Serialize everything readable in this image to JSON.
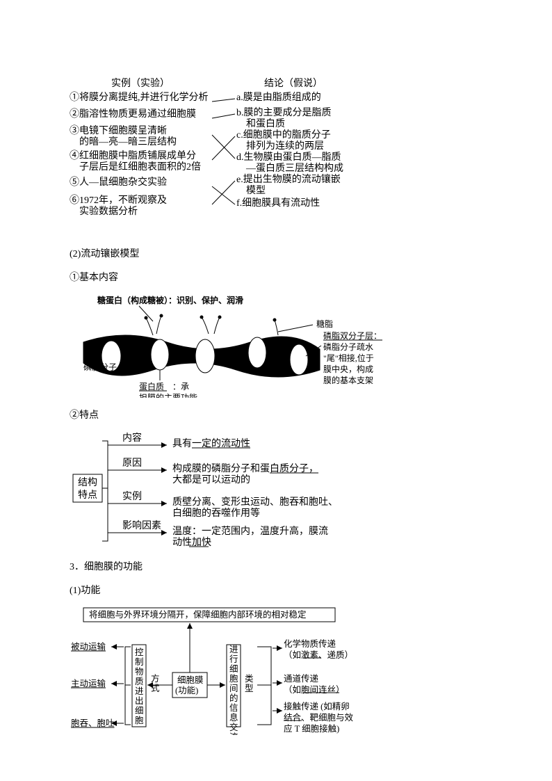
{
  "diagram1": {
    "left_title": "实例（实验）",
    "right_title": "结论（假说）",
    "left_items": [
      "①将膜分离提纯,并进行化学分析",
      "②脂溶性物质更易通过细胞膜",
      "③电镜下细胞膜呈清晰\n　的暗—亮—暗三层结构",
      "④红细胞膜中脂质铺展成单分\n　子层后是红细胞表面积的2倍",
      "⑤人—鼠细胞杂交实验",
      "⑥1972年，不断观察及\n　实验数据分析"
    ],
    "right_items": [
      "a.膜是由脂质组成的",
      "b.膜的主要成分是脂质\n　和蛋白质",
      "c.细胞膜中的脂质分子\n　排列为连续的两层",
      "d.生物膜由蛋白质—脂质\n　—蛋白质三层结构构成",
      "e.提出生物膜的流动镶嵌\n　模型",
      "f.细胞膜具有流动性"
    ],
    "connections": [
      [
        0,
        0
      ],
      [
        1,
        1
      ],
      [
        2,
        3
      ],
      [
        3,
        2
      ],
      [
        4,
        5
      ],
      [
        5,
        4
      ]
    ]
  },
  "sec2": {
    "title": "(2)流动镶嵌模型",
    "sub1": "①基本内容",
    "labels": {
      "glycoprotein": "糖蛋白（构成糖被）：识别、保护、润滑",
      "glycolipid": "糖脂",
      "bilayer": "磷脂双分子层：\n磷脂分子疏水\n\"尾\"相接,位于\n膜中央，构成\n膜的基本支架",
      "phospholipid": "磷脂分子",
      "protein": "蛋白质　：承\n担膜的主要功能"
    },
    "sub2": "②特点",
    "tree": {
      "root": "结构\n特点",
      "branches": [
        {
          "label": "内容",
          "text": "具有一定的流动性",
          "underline": "一定的流动性"
        },
        {
          "label": "原因",
          "text": "构成膜的磷脂分子和蛋白质分子，\n大都是可以运动的",
          "underline": "蛋白质分子"
        },
        {
          "label": "实例",
          "text": "质壁分离、变形虫运动、胞吞和胞吐、\n白细胞的吞噬作用等"
        },
        {
          "label": "影响因素",
          "text": "温度：一定范围内，温度升高，膜流\n动性加快",
          "underline": "加快"
        }
      ]
    }
  },
  "sec3": {
    "title": "3．细胞膜的功能",
    "sub1": "(1)功能",
    "top_box": "将细胞与外界环境分隔开，保障细胞内部环境的相对稳定",
    "center": "细胞膜\n(功能)",
    "left_col": "控制物质进出细胞",
    "left_label": "方式",
    "left_items": [
      "被动运输",
      "主动运输",
      "胞吞、胞吐"
    ],
    "right_col": "进行细胞间的信息交流",
    "right_label": "类型",
    "right_items": [
      "化学物质传递\n（如激素、递质）",
      "通道传递\n（如胞间连丝）",
      "接触传递 (如精卵\n结合、靶细胞与效\n应 T 细胞接触)"
    ],
    "underlines": [
      "激素",
      "胞间连丝",
      "结合"
    ]
  }
}
